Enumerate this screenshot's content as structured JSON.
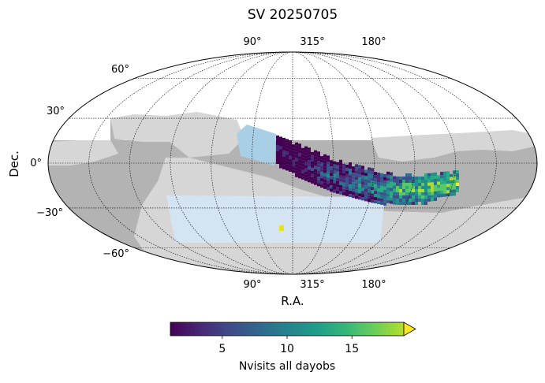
{
  "chart_data": {
    "type": "heatmap",
    "projection": "mollweide",
    "title": "SV 20250705",
    "xlabel": "R.A.",
    "ylabel": "Dec.",
    "ra_tick_labels": [
      "90°",
      "315°",
      "180°"
    ],
    "dec_tick_labels": [
      "60°",
      "30°",
      "0°",
      "−30°",
      "−60°"
    ],
    "dec_ticks": [
      60,
      30,
      0,
      -30,
      -60
    ],
    "grid": true,
    "colorbar": {
      "label": "Nvisits all dayobs",
      "colormap": "viridis",
      "range": [
        1,
        19
      ],
      "ticks": [
        5,
        10,
        15
      ],
      "extend": "max"
    },
    "footprint_regions": [
      {
        "region": "galactic plane / excluded sky",
        "color": "#b3b3b3"
      },
      {
        "region": "survey footprint",
        "color": "#d6d6d6"
      },
      {
        "region": "light blue patch (northern)",
        "color": "#a9cfe6"
      },
      {
        "region": "light blue patch (southern)",
        "color": "#d5e4f3"
      }
    ],
    "observed_band": {
      "description": "Band of visited fields across the equatorial/southern sky",
      "peak_nvisits": 19,
      "min_nvisits": 1
    }
  }
}
